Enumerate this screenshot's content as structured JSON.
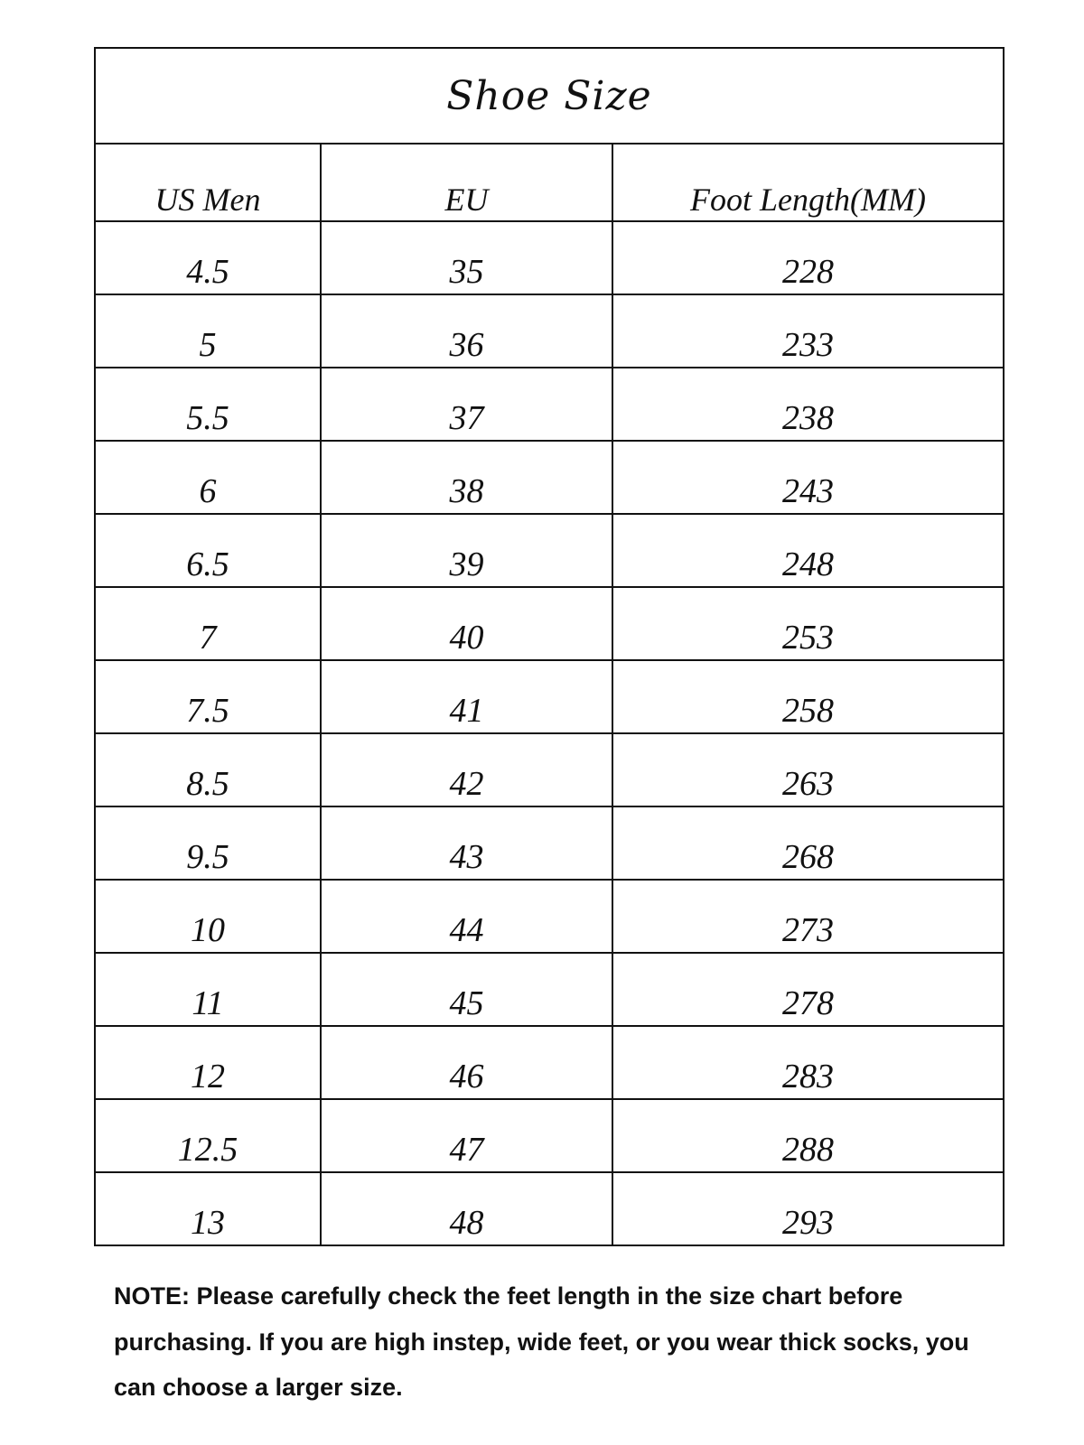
{
  "title": "Shoe Size",
  "columns": [
    "US Men",
    "EU",
    "Foot Length(MM)"
  ],
  "rows": [
    [
      "4.5",
      "35",
      "228"
    ],
    [
      "5",
      "36",
      "233"
    ],
    [
      "5.5",
      "37",
      "238"
    ],
    [
      "6",
      "38",
      "243"
    ],
    [
      "6.5",
      "39",
      "248"
    ],
    [
      "7",
      "40",
      "253"
    ],
    [
      "7.5",
      "41",
      "258"
    ],
    [
      "8.5",
      "42",
      "263"
    ],
    [
      "9.5",
      "43",
      "268"
    ],
    [
      "10",
      "44",
      "273"
    ],
    [
      "11",
      "45",
      "278"
    ],
    [
      "12",
      "46",
      "283"
    ],
    [
      "12.5",
      "47",
      "288"
    ],
    [
      "13",
      "48",
      "293"
    ]
  ],
  "note": "NOTE: Please carefully check the feet length in the size chart before purchasing. If you are high instep, wide feet, or you wear thick socks, you can choose a larger size."
}
